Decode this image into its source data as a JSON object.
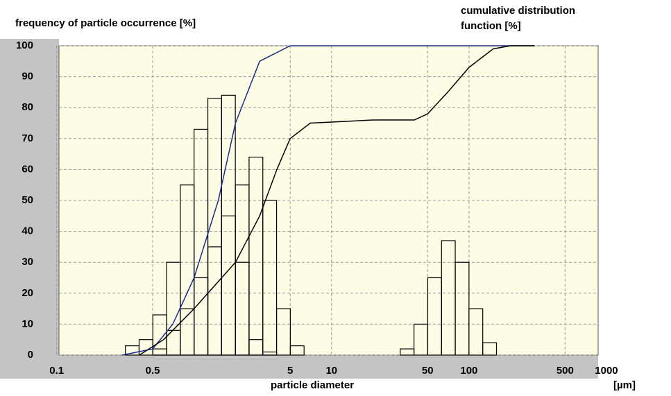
{
  "chart_data": {
    "type": "histogram",
    "title": "frequency of particle occurrence [%]",
    "y2_title": [
      "cumulative distribution",
      "function [%]"
    ],
    "xlabel": "particle diameter",
    "xunit": "[µm]",
    "xscale": "log",
    "xlim": [
      0.104,
      870
    ],
    "xticks": [
      0.1,
      0.5,
      5,
      10,
      50,
      100,
      500,
      1000
    ],
    "ylim": [
      0,
      100
    ],
    "yticks": [
      0,
      10,
      20,
      30,
      40,
      50,
      60,
      70,
      80,
      90,
      100
    ],
    "y2lim": [
      0,
      100
    ],
    "grid": true,
    "series": [
      {
        "color": "#000000",
        "bins": [
          0.316,
          0.398,
          0.501,
          0.631,
          0.794,
          1.0,
          1.259,
          1.585,
          1.995,
          2.512,
          3.162,
          3.981
        ],
        "values": [
          3,
          5,
          13,
          30,
          55,
          73,
          83,
          84,
          30,
          5,
          1
        ]
      },
      {
        "color": "#000000",
        "bins": [
          0.501,
          0.631,
          0.794,
          1.0,
          1.259,
          1.585,
          1.995,
          2.512,
          3.162,
          3.981,
          5.012,
          6.31
        ],
        "values": [
          2,
          8,
          15,
          25,
          35,
          45,
          55,
          64,
          50,
          15,
          3
        ]
      },
      {
        "color": "#000000",
        "bins": [
          31.6,
          39.8,
          50.1,
          63.1,
          79.4,
          100,
          125.9,
          158.5
        ],
        "values": [
          2,
          10,
          25,
          37,
          30,
          15,
          4
        ]
      }
    ],
    "lines": [
      {
        "color": "#1a2a8c",
        "axis": "y2",
        "x": [
          0.3,
          0.5,
          0.7,
          1,
          1.5,
          2,
          3,
          5,
          10,
          100,
          300
        ],
        "values": [
          0,
          2,
          10,
          25,
          50,
          75,
          95,
          100,
          100,
          100,
          100
        ]
      },
      {
        "color": "#000000",
        "axis": "y2",
        "x": [
          0.4,
          0.6,
          1,
          2,
          3,
          4,
          5,
          7,
          20,
          40,
          50,
          70,
          100,
          150,
          200,
          300
        ],
        "values": [
          0,
          5,
          15,
          30,
          45,
          60,
          70,
          75,
          76,
          76,
          78,
          85,
          93,
          99,
          100,
          100
        ]
      }
    ]
  }
}
